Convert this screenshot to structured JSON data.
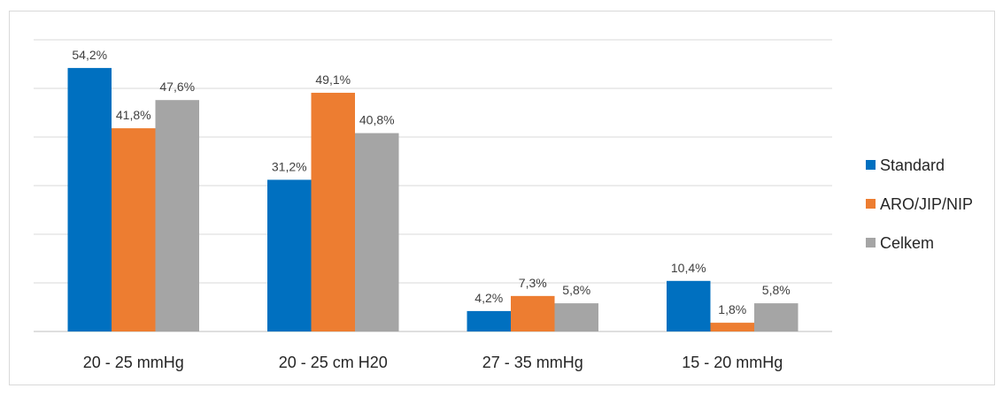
{
  "chart_data": {
    "type": "bar",
    "categories": [
      "20 - 25 mmHg",
      "20 - 25 cm H20",
      "27 - 35 mmHg",
      "15 - 20 mmHg"
    ],
    "series": [
      {
        "name": "Standard",
        "values": [
          54.2,
          31.2,
          4.2,
          10.4
        ],
        "labels": [
          "54,2%",
          "31,2%",
          "4,2%",
          "10,4%"
        ],
        "color": "#0070c0"
      },
      {
        "name": "ARO/JIP/NIP",
        "values": [
          41.8,
          49.1,
          7.3,
          1.8
        ],
        "labels": [
          "41,8%",
          "49,1%",
          "7,3%",
          "1,8%"
        ],
        "color": "#ed7d31"
      },
      {
        "name": "Celkem",
        "values": [
          47.6,
          40.8,
          5.8,
          5.8
        ],
        "labels": [
          "47,6%",
          "40,8%",
          "5,8%",
          "5,8%"
        ],
        "color": "#a5a5a5"
      }
    ],
    "ylim": [
      0,
      60
    ],
    "grid": true,
    "gridline_color": "#d9d9d9",
    "legend_position": "right"
  }
}
